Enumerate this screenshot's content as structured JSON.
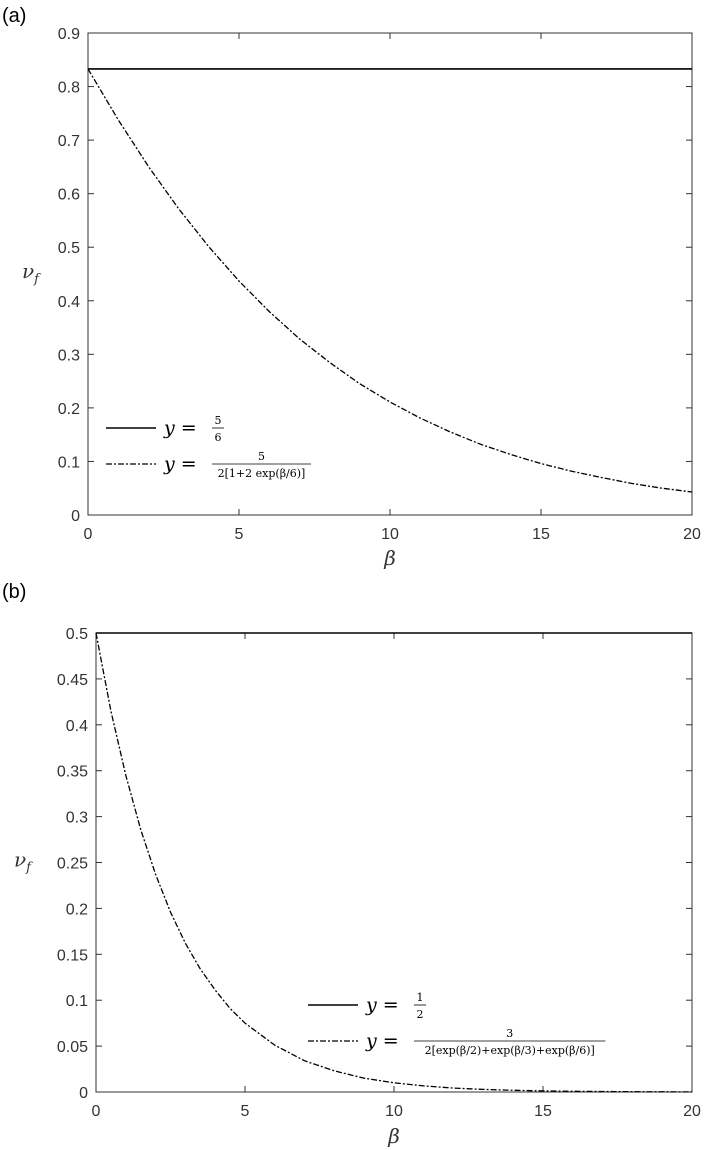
{
  "chart_data": [
    {
      "type": "line",
      "panel_label": "(a)",
      "xlabel": "β",
      "ylabel_main": "ν",
      "ylabel_sub": "f",
      "xlim": [
        0,
        20
      ],
      "ylim": [
        0,
        0.9
      ],
      "xticks": [
        0,
        5,
        10,
        15,
        20
      ],
      "yticks": [
        0,
        0.1,
        0.2,
        0.3,
        0.4,
        0.5,
        0.6,
        0.7,
        0.8,
        0.9
      ],
      "ytick_labels": [
        "0",
        "0.1",
        "0.2",
        "0.3",
        "0.4",
        "0.5",
        "0.6",
        "0.7",
        "0.8",
        "0.9"
      ],
      "legend_position": "bottom-left",
      "series": [
        {
          "legend_text": "y = 5/6",
          "legend_lhs": "y =",
          "legend_rhs_numerator": "5",
          "legend_rhs_denominator": "6",
          "style": "solid",
          "x": [
            0,
            20
          ],
          "y": [
            0.833,
            0.833
          ]
        },
        {
          "legend_text": "y = 5 / 2[1+2 exp(β/6)]",
          "legend_lhs": "y =",
          "legend_rhs_numerator": "5",
          "legend_rhs_denominator": "2[1+2 exp(β/6)]",
          "style": "dashdot",
          "x": [
            0,
            1,
            2,
            3,
            4,
            5,
            6,
            7,
            8,
            9,
            10,
            11,
            12,
            13,
            14,
            15,
            16,
            17,
            18,
            19,
            20
          ],
          "y": [
            0.833,
            0.738,
            0.651,
            0.572,
            0.501,
            0.437,
            0.38,
            0.329,
            0.285,
            0.245,
            0.211,
            0.181,
            0.155,
            0.132,
            0.113,
            0.096,
            0.082,
            0.07,
            0.059,
            0.05,
            0.043
          ]
        }
      ]
    },
    {
      "type": "line",
      "panel_label": "(b)",
      "xlabel": "β",
      "ylabel_main": "ν",
      "ylabel_sub": "f",
      "xlim": [
        0,
        20
      ],
      "ylim": [
        0,
        0.5
      ],
      "xticks": [
        0,
        5,
        10,
        15,
        20
      ],
      "yticks": [
        0,
        0.05,
        0.1,
        0.15,
        0.2,
        0.25,
        0.3,
        0.35,
        0.4,
        0.45,
        0.5
      ],
      "ytick_labels": [
        "0",
        "0.05",
        "0.1",
        "0.15",
        "0.2",
        "0.25",
        "0.3",
        "0.35",
        "0.4",
        "0.45",
        "0.5"
      ],
      "legend_position": "bottom-right",
      "series": [
        {
          "legend_text": "y = 1/2",
          "legend_lhs": "y =",
          "legend_rhs_numerator": "1",
          "legend_rhs_denominator": "2",
          "style": "solid",
          "x": [
            0,
            20
          ],
          "y": [
            0.5,
            0.5
          ]
        },
        {
          "legend_text": "y = 3 / 2[exp(β/2)+exp(β/3)+exp(β/6)]",
          "legend_lhs": "y =",
          "legend_rhs_numerator": "3",
          "legend_rhs_denominator": "2[exp(β/2)+exp(β/3)+exp(β/6)]",
          "style": "dashdot",
          "x": [
            0,
            0.5,
            1,
            1.5,
            2,
            2.5,
            3,
            3.5,
            4,
            4.5,
            5,
            6,
            7,
            8,
            9,
            10,
            11,
            12,
            13,
            14,
            15,
            16,
            17,
            18,
            19,
            20
          ],
          "y": [
            0.5,
            0.415,
            0.345,
            0.286,
            0.237,
            0.196,
            0.162,
            0.134,
            0.111,
            0.091,
            0.075,
            0.051,
            0.034,
            0.023,
            0.015,
            0.01,
            0.0066,
            0.0043,
            0.0028,
            0.0018,
            0.0012,
            0.0008,
            0.0005,
            0.0003,
            0.0002,
            0.0001
          ]
        }
      ]
    }
  ]
}
